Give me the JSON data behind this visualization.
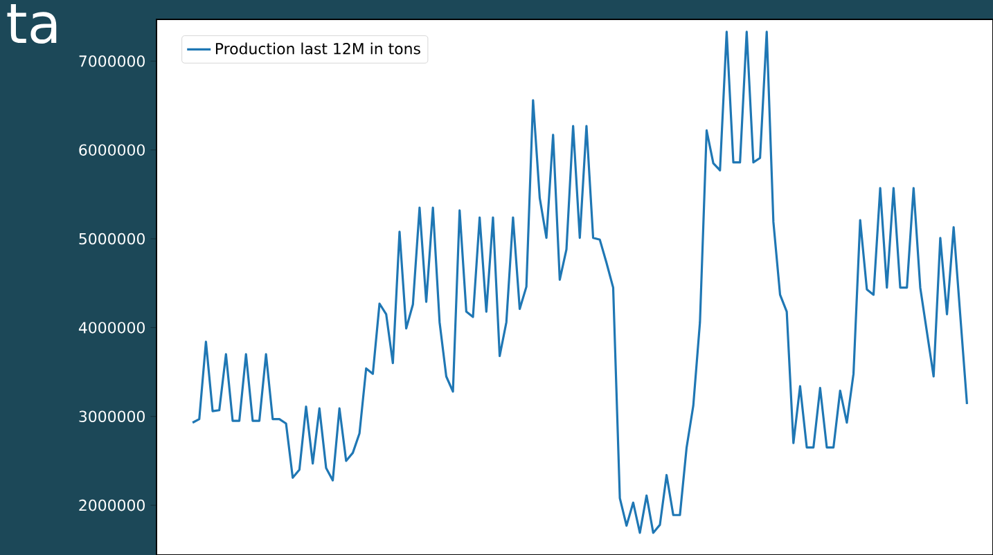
{
  "chart_data": {
    "type": "line",
    "categories": [
      null,
      null,
      null,
      null,
      null,
      null,
      null,
      null,
      null,
      null,
      null,
      null,
      null,
      null,
      null,
      null,
      null,
      null,
      null,
      null,
      null,
      null,
      null,
      null,
      null,
      null,
      null,
      null,
      null,
      null,
      null,
      null,
      null,
      null,
      null,
      null,
      null,
      null,
      null,
      null,
      null,
      null,
      null,
      null,
      null,
      null,
      null,
      null,
      null,
      null,
      null,
      null,
      null,
      null,
      null,
      null,
      null,
      null,
      null,
      null,
      null,
      null,
      null,
      null,
      null,
      null,
      null,
      null,
      null,
      null,
      null,
      null,
      null,
      null,
      null,
      null,
      null,
      null,
      null,
      null,
      null,
      null,
      null,
      null,
      null,
      null,
      null,
      null,
      null,
      null,
      null,
      null,
      null,
      null,
      null,
      null,
      null,
      null,
      null,
      null,
      null,
      null,
      null,
      null,
      null,
      null,
      null,
      null,
      null,
      null,
      null,
      null,
      null,
      null,
      null,
      null,
      null
    ],
    "series": [
      {
        "name": "Production last 12M in tons",
        "color": "#1f77b4",
        "values": [
          2930000,
          2970000,
          3840000,
          3060000,
          3070000,
          3700000,
          2950000,
          2950000,
          3700000,
          2950000,
          2950000,
          3700000,
          2970000,
          2970000,
          2920000,
          2310000,
          2400000,
          3110000,
          2470000,
          3090000,
          2420000,
          2280000,
          3090000,
          2500000,
          2590000,
          2810000,
          3540000,
          3480000,
          4270000,
          4150000,
          3600000,
          5080000,
          3990000,
          4260000,
          5350000,
          4290000,
          5350000,
          4060000,
          3450000,
          3280000,
          5320000,
          4180000,
          4120000,
          5240000,
          4180000,
          5240000,
          3680000,
          4060000,
          5240000,
          4210000,
          4460000,
          6560000,
          5460000,
          5010000,
          6170000,
          4540000,
          4880000,
          6270000,
          5010000,
          6270000,
          5010000,
          4990000,
          4730000,
          4450000,
          2080000,
          1770000,
          2030000,
          1690000,
          2110000,
          1690000,
          1780000,
          2340000,
          1890000,
          1890000,
          2650000,
          3120000,
          4060000,
          6220000,
          5850000,
          5770000,
          7330000,
          5860000,
          5860000,
          7330000,
          5860000,
          5910000,
          7330000,
          5190000,
          4370000,
          4180000,
          2700000,
          3340000,
          2650000,
          2650000,
          3320000,
          2650000,
          2650000,
          3290000,
          2930000,
          3480000,
          5210000,
          4430000,
          4370000,
          5570000,
          4450000,
          5570000,
          4450000,
          4450000,
          5570000,
          4450000,
          3950000,
          3450000,
          5010000,
          4150000,
          5130000,
          4130000,
          3140000
        ]
      }
    ],
    "ylim": [
      1440000,
      7470000
    ],
    "yticks": [
      2000000,
      3000000,
      4000000,
      5000000,
      6000000,
      7000000
    ],
    "legend": "top left",
    "annotations": [
      "ta"
    ]
  }
}
